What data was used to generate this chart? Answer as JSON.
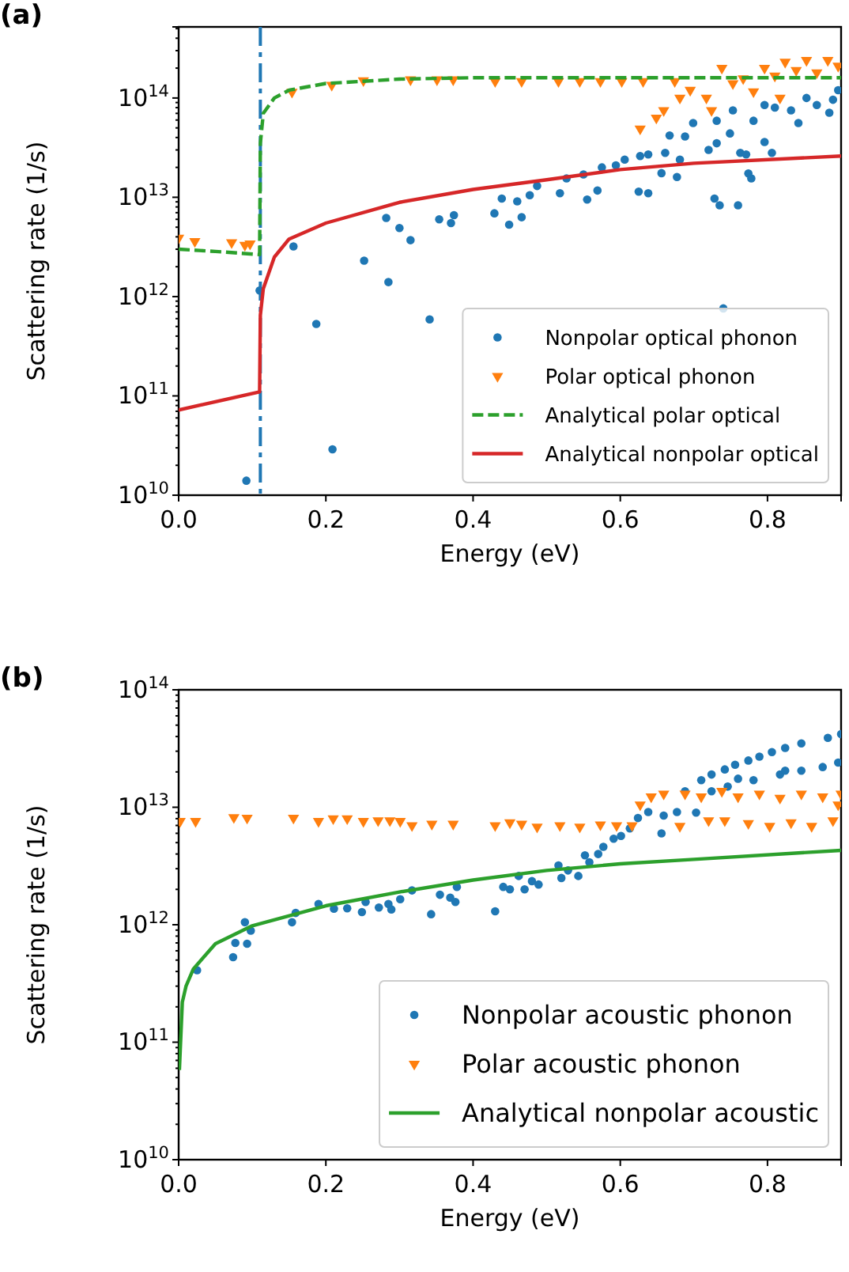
{
  "chart_data": [
    {
      "type": "scatter",
      "title": "(a)",
      "xlabel": "Energy (eV)",
      "ylabel": "Scattering rate (1/s)",
      "log": "y",
      "xlim": [
        0,
        0.9
      ],
      "xticks": [
        {
          "value": 0,
          "label": "0.0"
        },
        0.2,
        0.4,
        0.6,
        0.8
      ],
      "ylim": [
        10000000000.0,
        520000000000000.0
      ],
      "yticks": [
        {
          "value": 10000000000.0,
          "label": "10$^{10}$"
        },
        {
          "value": 100000000000.0,
          "label": "10$^{11}$"
        },
        {
          "value": 1000000000000.0,
          "label": "10$^{12}$"
        },
        {
          "value": 10000000000000.0,
          "label": "10$^{13}$"
        },
        {
          "value": 100000000000000.0,
          "label": "10$^{14}$"
        }
      ],
      "grid": false,
      "legend": "bottom right",
      "ref_lines": [
        {
          "axis": "x",
          "value": 0.111,
          "color": "#1f77b4",
          "line_style": "dashed"
        }
      ],
      "series": [
        {
          "name": "Nonpolar optical phonon",
          "type": "scatter",
          "marker": "circle",
          "color": "#1f77b4",
          "x": [
            0.092,
            0.11,
            0.156,
            0.187,
            0.209,
            0.252,
            0.282,
            0.285,
            0.3,
            0.315,
            0.341,
            0.354,
            0.37,
            0.374,
            0.429,
            0.439,
            0.449,
            0.46,
            0.466,
            0.477,
            0.487,
            0.518,
            0.527,
            0.55,
            0.555,
            0.569,
            0.575,
            0.594,
            0.606,
            0.625,
            0.638,
            0.627,
            0.638,
            0.656,
            0.661,
            0.667,
            0.677,
            0.681,
            0.688,
            0.699,
            0.72,
            0.728,
            0.735,
            0.74,
            0.731,
            0.749,
            0.76,
            0.763,
            0.771,
            0.774,
            0.778,
            0.753,
            0.781,
            0.796,
            0.806,
            0.81,
            0.832,
            0.842,
            0.853,
            0.867,
            0.884,
            0.896,
            0.889,
            0.731,
            0.796
          ],
          "values": [
            14000000000.0,
            1150000000000.0,
            3200000000000.0,
            530000000000.0,
            29000000000.0,
            2300000000000.0,
            6200000000000.0,
            1400000000000.0,
            4900000000000.0,
            3700000000000.0,
            590000000000.0,
            6000000000000.0,
            5500000000000.0,
            6600000000000.0,
            6900000000000.0,
            9700000000000.0,
            5300000000000.0,
            9100000000000.0,
            6300000000000.0,
            10500000000000.0,
            13000000000000.0,
            11000000000000.0,
            15500000000000.0,
            17000000000000.0,
            9500000000000.0,
            11700000000000.0,
            20000000000000.0,
            21000000000000.0,
            24000000000000.0,
            11400000000000.0,
            11000000000000.0,
            26000000000000.0,
            27000000000000.0,
            17500000000000.0,
            28000000000000.0,
            42000000000000.0,
            16000000000000.0,
            24000000000000.0,
            41000000000000.0,
            56000000000000.0,
            30000000000000.0,
            9700000000000.0,
            8300000000000.0,
            760000000000.0,
            35000000000000.0,
            44000000000000.0,
            8300000000000.0,
            28000000000000.0,
            27000000000000.0,
            17400000000000.0,
            15500000000000.0,
            75000000000000.0,
            59000000000000.0,
            36000000000000.0,
            28000000000000.0,
            80000000000000.0,
            75000000000000.0,
            56000000000000.0,
            100000000000000.0,
            85000000000000.0,
            71000000000000.0,
            120000000000000.0,
            96000000000000.0,
            59000000000000.0,
            85000000000000.0
          ]
        },
        {
          "name": "Polar optical phonon",
          "type": "scatter",
          "marker": "triangle",
          "color": "#ff7f0e",
          "x": [
            0,
            0.022,
            0.072,
            0.09,
            0.097,
            0.154,
            0.208,
            0.251,
            0.315,
            0.351,
            0.373,
            0.43,
            0.466,
            0.516,
            0.545,
            0.573,
            0.602,
            0.631,
            0.674,
            0.627,
            0.649,
            0.659,
            0.681,
            0.695,
            0.724,
            0.738,
            0.753,
            0.767,
            0.781,
            0.796,
            0.81,
            0.824,
            0.839,
            0.853,
            0.867,
            0.882,
            0.896,
            0.717,
            0.817
          ],
          "values": [
            3900000000000.0,
            3600000000000.0,
            3500000000000.0,
            3300000000000.0,
            3400000000000.0,
            115000000000000.0,
            135000000000000.0,
            150000000000000.0,
            153000000000000.0,
            153000000000000.0,
            153000000000000.0,
            147000000000000.0,
            147000000000000.0,
            147000000000000.0,
            147000000000000.0,
            147000000000000.0,
            147000000000000.0,
            147000000000000.0,
            147000000000000.0,
            49000000000000.0,
            63000000000000.0,
            75000000000000.0,
            100000000000000.0,
            120000000000000.0,
            75000000000000.0,
            200000000000000.0,
            140000000000000.0,
            157000000000000.0,
            116000000000000.0,
            200000000000000.0,
            167000000000000.0,
            230000000000000.0,
            190000000000000.0,
            240000000000000.0,
            180000000000000.0,
            240000000000000.0,
            210000000000000.0,
            100000000000000.0,
            100000000000000.0
          ]
        },
        {
          "name": "Analytical polar optical",
          "type": "line",
          "marker": "none",
          "line_style": "dashed",
          "color": "#2ca02c",
          "x": [
            0,
            0.05,
            0.11,
            0.111,
            0.115,
            0.13,
            0.15,
            0.2,
            0.3,
            0.4,
            0.6,
            0.9
          ],
          "values": [
            3000000000000.0,
            2850000000000.0,
            2650000000000.0,
            35000000000000.0,
            70000000000000.0,
            100000000000000.0,
            120000000000000.0,
            140000000000000.0,
            155000000000000.0,
            160000000000000.0,
            160000000000000.0,
            160000000000000.0
          ]
        },
        {
          "name": "Analytical nonpolar optical",
          "type": "line",
          "marker": "none",
          "line_style": "solid",
          "color": "#d62728",
          "x": [
            0,
            0.11,
            0.111,
            0.115,
            0.13,
            0.15,
            0.2,
            0.3,
            0.4,
            0.5,
            0.6,
            0.7,
            0.9
          ],
          "values": [
            72000000000.0,
            110000000000.0,
            650000000000.0,
            1200000000000.0,
            2500000000000.0,
            3800000000000.0,
            5500000000000.0,
            8900000000000.0,
            12000000000000.0,
            15000000000000.0,
            19000000000000.0,
            22000000000000.0,
            26000000000000.0
          ]
        }
      ]
    },
    {
      "type": "scatter",
      "title": "(b)",
      "xlabel": "Energy (eV)",
      "ylabel": "Scattering rate (1/s)",
      "log": "y",
      "xlim": [
        0,
        0.9
      ],
      "xticks": [
        {
          "value": 0,
          "label": "0.0"
        },
        0.2,
        0.4,
        0.6,
        0.8
      ],
      "ylim": [
        10000000000.0,
        100000000000000.0
      ],
      "yticks": [
        {
          "value": 10000000000.0,
          "label": "10$^{10}$"
        },
        {
          "value": 100000000000.0,
          "label": "10$^{11}$"
        },
        {
          "value": 1000000000000.0,
          "label": "10$^{12}$"
        },
        {
          "value": 10000000000000.0,
          "label": "10$^{13}$"
        },
        {
          "value": 100000000000000.0,
          "label": "10$^{14}$"
        }
      ],
      "grid": false,
      "legend": "bottom right",
      "series": [
        {
          "name": "Nonpolar acoustic phonon",
          "type": "scatter",
          "marker": "circle",
          "color": "#1f77b4",
          "x": [
            0.025,
            0.074,
            0.077,
            0.09,
            0.093,
            0.098,
            0.154,
            0.159,
            0.19,
            0.211,
            0.229,
            0.249,
            0.254,
            0.272,
            0.285,
            0.289,
            0.301,
            0.317,
            0.343,
            0.355,
            0.369,
            0.376,
            0.378,
            0.43,
            0.441,
            0.45,
            0.462,
            0.47,
            0.48,
            0.489,
            0.516,
            0.52,
            0.529,
            0.543,
            0.552,
            0.558,
            0.57,
            0.577,
            0.591,
            0.601,
            0.613,
            0.624,
            0.638,
            0.656,
            0.659,
            0.677,
            0.703,
            0.688,
            0.71,
            0.724,
            0.742,
            0.756,
            0.774,
            0.789,
            0.806,
            0.824,
            0.846,
            0.882,
            0.9,
            0.746,
            0.781,
            0.817,
            0.846,
            0.875,
            0.896,
            0.824,
            0.76,
            0.724
          ],
          "values": [
            410000000000.0,
            530000000000.0,
            700000000000.0,
            1050000000000.0,
            690000000000.0,
            890000000000.0,
            1050000000000.0,
            1260000000000.0,
            1500000000000.0,
            1370000000000.0,
            1380000000000.0,
            1280000000000.0,
            1560000000000.0,
            1400000000000.0,
            1500000000000.0,
            1350000000000.0,
            1650000000000.0,
            1960000000000.0,
            1230000000000.0,
            1800000000000.0,
            1700000000000.0,
            1560000000000.0,
            2100000000000.0,
            1300000000000.0,
            2100000000000.0,
            2000000000000.0,
            2600000000000.0,
            2000000000000.0,
            2350000000000.0,
            2200000000000.0,
            3200000000000.0,
            2500000000000.0,
            2900000000000.0,
            2600000000000.0,
            3900000000000.0,
            3400000000000.0,
            4000000000000.0,
            4600000000000.0,
            5400000000000.0,
            5700000000000.0,
            6600000000000.0,
            8100000000000.0,
            9100000000000.0,
            6000000000000.0,
            8500000000000.0,
            9100000000000.0,
            9000000000000.0,
            13700000000000.0,
            17000000000000.0,
            19000000000000.0,
            21000000000000.0,
            23000000000000.0,
            25000000000000.0,
            27000000000000.0,
            29500000000000.0,
            32000000000000.0,
            35000000000000.0,
            39000000000000.0,
            42000000000000.0,
            15000000000000.0,
            17000000000000.0,
            19000000000000.0,
            20500000000000.0,
            22000000000000.0,
            24000000000000.0,
            20500000000000.0,
            17500000000000.0,
            13700000000000.0
          ]
        },
        {
          "name": "Polar acoustic phonon",
          "type": "scatter",
          "marker": "triangle",
          "color": "#ff7f0e",
          "x": [
            0.002,
            0.023,
            0.075,
            0.093,
            0.156,
            0.19,
            0.21,
            0.229,
            0.251,
            0.271,
            0.287,
            0.301,
            0.317,
            0.344,
            0.373,
            0.43,
            0.45,
            0.466,
            0.487,
            0.518,
            0.545,
            0.573,
            0.595,
            0.616,
            0.627,
            0.642,
            0.659,
            0.681,
            0.688,
            0.71,
            0.72,
            0.738,
            0.742,
            0.76,
            0.774,
            0.789,
            0.803,
            0.817,
            0.832,
            0.846,
            0.86,
            0.875,
            0.889,
            0.9,
            0.896
          ],
          "values": [
            7600000000000.0,
            7600000000000.0,
            8200000000000.0,
            8100000000000.0,
            8100000000000.0,
            7600000000000.0,
            8000000000000.0,
            8000000000000.0,
            7600000000000.0,
            7700000000000.0,
            7700000000000.0,
            7600000000000.0,
            7000000000000.0,
            7200000000000.0,
            7200000000000.0,
            7000000000000.0,
            7400000000000.0,
            7200000000000.0,
            6800000000000.0,
            7000000000000.0,
            6800000000000.0,
            7100000000000.0,
            7000000000000.0,
            7000000000000.0,
            10500000000000.0,
            12300000000000.0,
            13000000000000.0,
            6900000000000.0,
            13000000000000.0,
            12300000000000.0,
            7700000000000.0,
            13700000000000.0,
            7700000000000.0,
            12300000000000.0,
            7300000000000.0,
            13000000000000.0,
            6900000000000.0,
            12000000000000.0,
            7400000000000.0,
            13000000000000.0,
            6900000000000.0,
            12300000000000.0,
            7700000000000.0,
            13000000000000.0,
            10500000000000.0
          ]
        },
        {
          "name": "Analytical nonpolar acoustic",
          "type": "line",
          "marker": "none",
          "line_style": "solid",
          "color": "#2ca02c",
          "x": [
            0.001,
            0.005,
            0.01,
            0.02,
            0.05,
            0.1,
            0.2,
            0.3,
            0.4,
            0.5,
            0.6,
            0.7,
            0.9
          ],
          "values": [
            58000000000.0,
            220000000000.0,
            300000000000.0,
            420000000000.0,
            690000000000.0,
            980000000000.0,
            1450000000000.0,
            1900000000000.0,
            2400000000000.0,
            2900000000000.0,
            3300000000000.0,
            3600000000000.0,
            4300000000000.0
          ]
        }
      ]
    }
  ]
}
